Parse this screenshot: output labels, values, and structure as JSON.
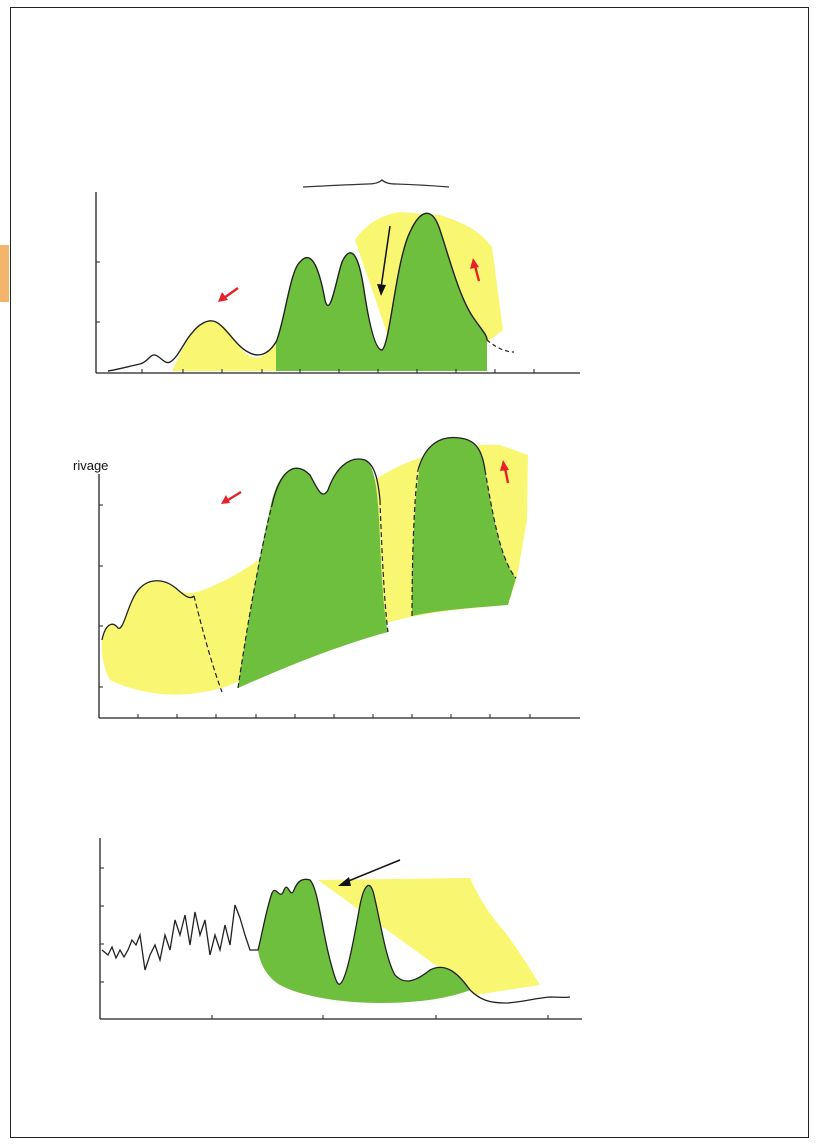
{
  "panels": {
    "middle": {
      "y_label": "rivage"
    }
  },
  "colors": {
    "yellow_fill": "#f9f772",
    "green_fill": "#6fbf3f",
    "red_arrow": "#e8202a",
    "line": "#222222",
    "tab": "#f2b56b"
  }
}
